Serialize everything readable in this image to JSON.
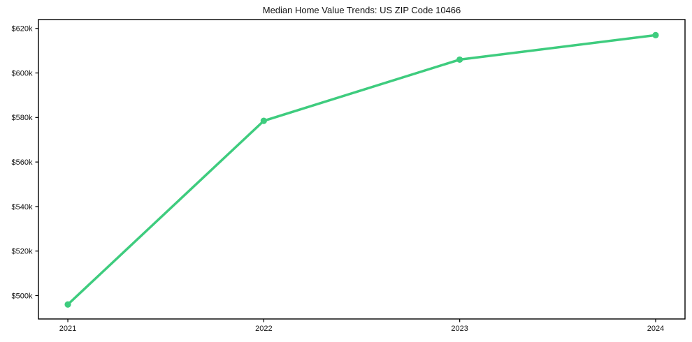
{
  "chart_data": {
    "type": "line",
    "title": "Median Home Value Trends: US ZIP Code 10466",
    "x": [
      2021,
      2022,
      2023,
      2024
    ],
    "values": [
      496000,
      578500,
      606000,
      617000
    ],
    "x_tick_labels": [
      "2021",
      "2022",
      "2023",
      "2024"
    ],
    "x_tick_values": [
      2021,
      2022,
      2023,
      2024
    ],
    "y_tick_labels": [
      "$500k",
      "$520k",
      "$540k",
      "$560k",
      "$580k",
      "$600k",
      "$620k"
    ],
    "y_tick_values": [
      500000,
      520000,
      540000,
      560000,
      580000,
      600000,
      620000
    ],
    "xlim": [
      2020.85,
      2024.15
    ],
    "ylim": [
      489500,
      624000
    ],
    "xlabel": "",
    "ylabel": "",
    "grid": false,
    "legend_position": "none",
    "line_color": "#3ecc7e",
    "marker": "circle",
    "axis_color": "#000000",
    "text_color": "#111111",
    "background_color": "#ffffff"
  }
}
